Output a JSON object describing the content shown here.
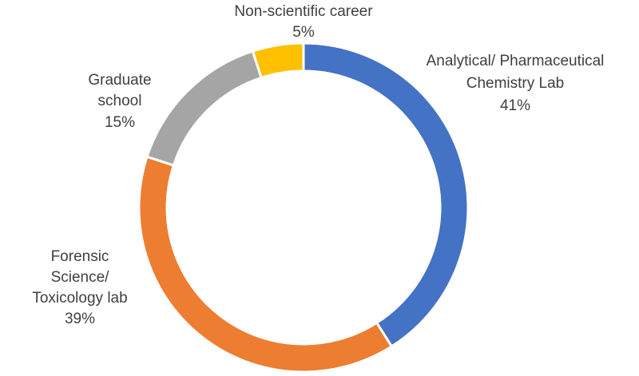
{
  "chart_data": {
    "type": "pie",
    "variant": "donut",
    "title": "",
    "slices": [
      {
        "name_lines": [
          "Analytical/ Pharmaceutical",
          "Chemistry Lab"
        ],
        "value": 41,
        "label": "41%",
        "color": "#4472C4"
      },
      {
        "name_lines": [
          "Forensic",
          "Science/",
          "Toxicology lab"
        ],
        "value": 39,
        "label": "39%",
        "color": "#ED7D31"
      },
      {
        "name_lines": [
          "Graduate",
          "school"
        ],
        "value": 15,
        "label": "15%",
        "color": "#A5A5A5"
      },
      {
        "name_lines": [
          "Non-scientific career"
        ],
        "value": 5,
        "label": "5%",
        "color": "#FFC000"
      }
    ],
    "start_angle": "12 o'clock",
    "direction": "clockwise",
    "legend": "none",
    "label_color": "#404040"
  }
}
